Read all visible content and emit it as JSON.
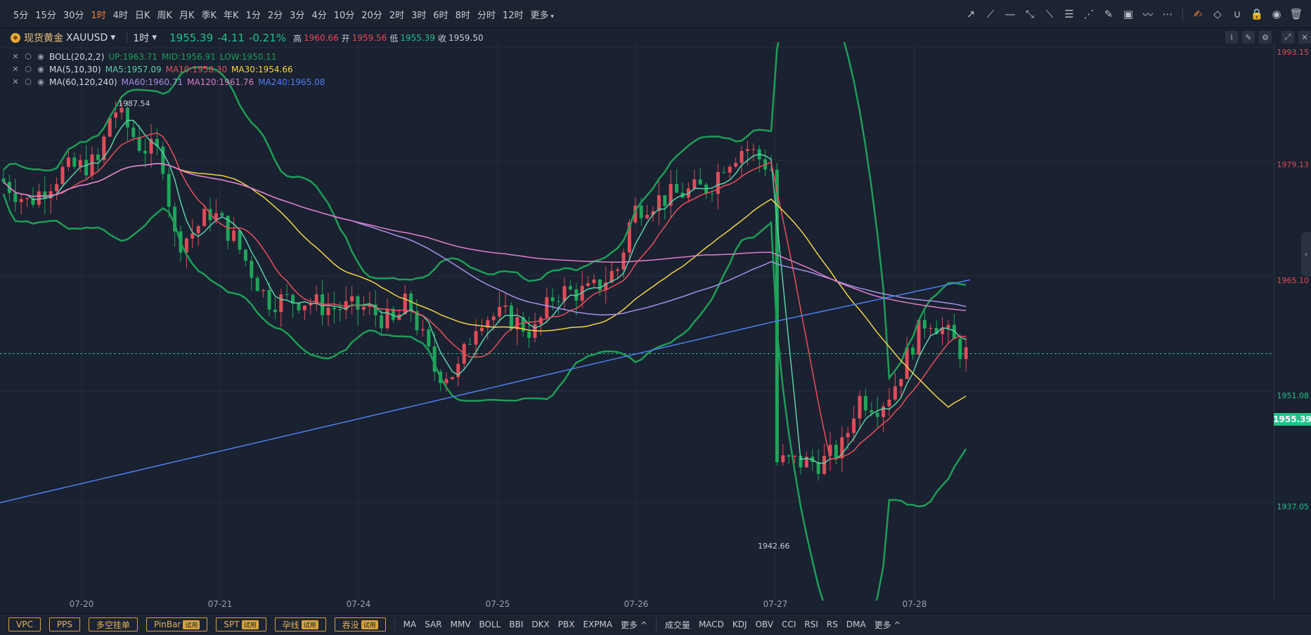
{
  "toolbar": {
    "periods": [
      "5分",
      "15分",
      "30分",
      "1时",
      "4时",
      "日K",
      "周K",
      "月K",
      "季K",
      "年K",
      "1分",
      "2分",
      "3分",
      "4分",
      "10分",
      "20分",
      "2时",
      "3时",
      "6时",
      "8时",
      "分时",
      "12时",
      "更多"
    ],
    "active_period_index": 3
  },
  "drawing_tools": [
    "trend-line-icon",
    "ray-icon",
    "horizontal-line-icon",
    "segment-icon",
    "extended-line-icon",
    "fibonacci-icon",
    "gann-fan-icon",
    "brush-icon",
    "image-icon",
    "wave-icon",
    "more-dots-icon",
    "note-edit-icon",
    "eraser-icon",
    "magnet-icon",
    "lock-icon",
    "eye-icon",
    "trash-icon"
  ],
  "symbol": {
    "name": "现货黄金",
    "code": "XAUUSD",
    "interval": "1时",
    "last": "1955.39",
    "change": "-4.11",
    "change_pct": "-0.21%",
    "high_label": "高",
    "high": "1960.66",
    "open_label": "开",
    "open": "1959.56",
    "low_label": "低",
    "low": "1955.39",
    "close_label": "收",
    "close": "1959.50"
  },
  "indicators": [
    {
      "name": "BOLL(20,2,2)",
      "values": [
        {
          "t": "UP:1963.71",
          "c": "#1e9e57"
        },
        {
          "t": "MID:1956.91",
          "c": "#1e9e57"
        },
        {
          "t": "LOW:1950.11",
          "c": "#1e9e57"
        }
      ]
    },
    {
      "name": "MA(5,10,30)",
      "values": [
        {
          "t": "MA5:1957.09",
          "c": "#58d3a8"
        },
        {
          "t": "MA10:1958.30",
          "c": "#ea4f5c"
        },
        {
          "t": "MA30:1954.66",
          "c": "#f5d547"
        }
      ]
    },
    {
      "name": "MA(60,120,240)",
      "values": [
        {
          "t": "MA60:1960.71",
          "c": "#a890e8"
        },
        {
          "t": "MA120:1961.76",
          "c": "#e07ec8"
        },
        {
          "t": "MA240:1965.08",
          "c": "#4f7ff2"
        }
      ]
    }
  ],
  "y_axis": [
    {
      "label": "1993.15",
      "color": "#e04c59"
    },
    {
      "label": "1979.13",
      "color": "#e04c59"
    },
    {
      "label": "1965.10",
      "color": "#e04c59"
    },
    {
      "label": "1951.08",
      "color": "#21c28a"
    },
    {
      "label": "1937.05",
      "color": "#21c28a"
    }
  ],
  "x_axis": [
    "07-20",
    "07-21",
    "07-24",
    "07-25",
    "07-26",
    "07-27",
    "07-28"
  ],
  "extremes": {
    "high": "1987.54",
    "low": "1942.66"
  },
  "current_price_tag": "1955.39",
  "bottom": {
    "tools": [
      {
        "label": "VPC",
        "trial": ""
      },
      {
        "label": "PPS",
        "trial": ""
      },
      {
        "label": "多空挂单",
        "trial": ""
      },
      {
        "label": "PinBar",
        "trial": "试用"
      },
      {
        "label": "SPT",
        "trial": "试用"
      },
      {
        "label": "孕线",
        "trial": "试用"
      },
      {
        "label": "吞没",
        "trial": "试用"
      }
    ],
    "main_indicators": [
      "MA",
      "SAR",
      "MMV",
      "BOLL",
      "BBI",
      "DKX",
      "PBX",
      "EXPMA",
      "更多 ^"
    ],
    "sub_indicators": [
      "成交量",
      "MACD",
      "KDJ",
      "OBV",
      "CCI",
      "RSI",
      "RS",
      "DMA",
      "更多 ^"
    ]
  },
  "colors": {
    "up": "#e04c59",
    "down": "#21c28a",
    "boll": "#1e9e57",
    "ma5": "#58d3a8",
    "ma10": "#ea4f5c",
    "ma30": "#f5d547",
    "ma60": "#a890e8",
    "ma120": "#e07ec8",
    "ma240": "#4f7ff2",
    "accent": "#f07f3c"
  }
}
